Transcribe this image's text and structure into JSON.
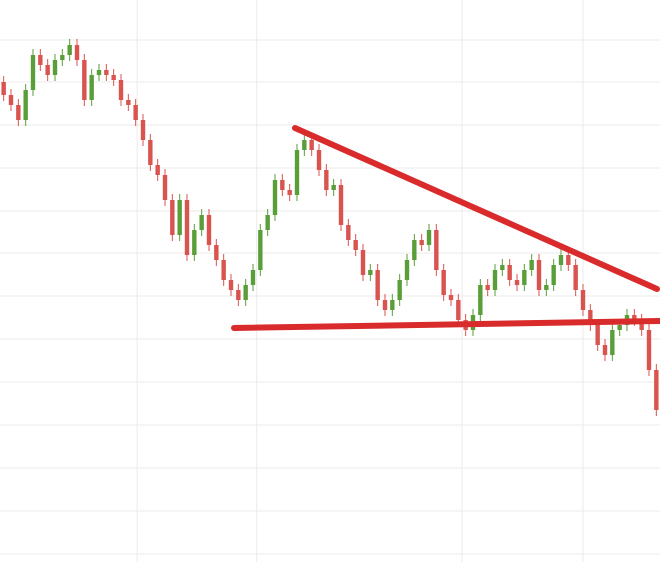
{
  "chart_data": {
    "type": "candlestick",
    "open": [
      480,
      467,
      457,
      442,
      472,
      507,
      497,
      487,
      502,
      507,
      517,
      502,
      462,
      487,
      492,
      487,
      482,
      462,
      457,
      442,
      422,
      397,
      387,
      362,
      327,
      362,
      307,
      332,
      347,
      317,
      302,
      282,
      272,
      262,
      277,
      292,
      332,
      347,
      382,
      372,
      367,
      412,
      422,
      412,
      392,
      372,
      377,
      337,
      322,
      312,
      287,
      292,
      262,
      252,
      262,
      282,
      302,
      322,
      317,
      332,
      292,
      267,
      262,
      242,
      232,
      247,
      277,
      272,
      292,
      297,
      282,
      277,
      292,
      302,
      272,
      277,
      297,
      307,
      297,
      272,
      252,
      237,
      217,
      207,
      232,
      237,
      247,
      242,
      232,
      192
    ],
    "high": [
      486,
      473,
      463,
      478,
      513,
      513,
      503,
      508,
      513,
      523,
      523,
      508,
      493,
      498,
      498,
      493,
      488,
      468,
      463,
      448,
      428,
      403,
      393,
      368,
      368,
      368,
      338,
      353,
      353,
      323,
      308,
      288,
      278,
      283,
      298,
      338,
      353,
      388,
      388,
      378,
      418,
      428,
      428,
      418,
      398,
      383,
      383,
      343,
      328,
      318,
      298,
      298,
      268,
      268,
      288,
      308,
      328,
      328,
      338,
      338,
      298,
      273,
      268,
      248,
      253,
      283,
      283,
      298,
      303,
      303,
      288,
      298,
      308,
      308,
      283,
      303,
      313,
      313,
      303,
      278,
      258,
      243,
      223,
      238,
      243,
      253,
      253,
      248,
      238,
      198
    ],
    "low": [
      461,
      451,
      436,
      436,
      466,
      491,
      481,
      481,
      496,
      501,
      496,
      456,
      456,
      481,
      481,
      476,
      456,
      451,
      436,
      416,
      391,
      381,
      356,
      321,
      321,
      301,
      301,
      326,
      311,
      296,
      276,
      266,
      256,
      256,
      271,
      286,
      326,
      341,
      366,
      361,
      361,
      406,
      406,
      386,
      366,
      366,
      331,
      316,
      306,
      281,
      281,
      256,
      246,
      246,
      256,
      276,
      296,
      311,
      311,
      286,
      261,
      256,
      236,
      226,
      226,
      241,
      266,
      266,
      286,
      276,
      271,
      271,
      286,
      266,
      266,
      271,
      291,
      291,
      266,
      246,
      231,
      211,
      201,
      201,
      226,
      231,
      236,
      226,
      186,
      146
    ],
    "close": [
      467,
      457,
      442,
      472,
      507,
      497,
      487,
      502,
      507,
      517,
      502,
      462,
      487,
      492,
      487,
      482,
      462,
      457,
      442,
      422,
      397,
      387,
      362,
      327,
      362,
      307,
      332,
      347,
      317,
      302,
      282,
      272,
      262,
      277,
      292,
      332,
      347,
      382,
      372,
      367,
      412,
      422,
      412,
      392,
      372,
      377,
      337,
      322,
      312,
      287,
      292,
      262,
      252,
      262,
      282,
      302,
      322,
      317,
      332,
      292,
      267,
      262,
      242,
      232,
      247,
      277,
      272,
      292,
      297,
      282,
      277,
      292,
      302,
      272,
      277,
      297,
      307,
      297,
      272,
      252,
      237,
      217,
      207,
      232,
      237,
      247,
      242,
      232,
      192,
      152
    ],
    "up_color": "#5a9e3a",
    "down_color": "#d9534f",
    "ylim": [
      0,
      562
    ],
    "yticks": [
      8,
      51,
      94,
      137,
      180,
      223,
      266,
      309,
      351,
      394,
      437,
      480,
      522
    ],
    "xlim": [
      -0.5,
      89.5
    ],
    "xticks": [
      18.2,
      34.5,
      62.5,
      79.0
    ],
    "grid": true
  }
}
